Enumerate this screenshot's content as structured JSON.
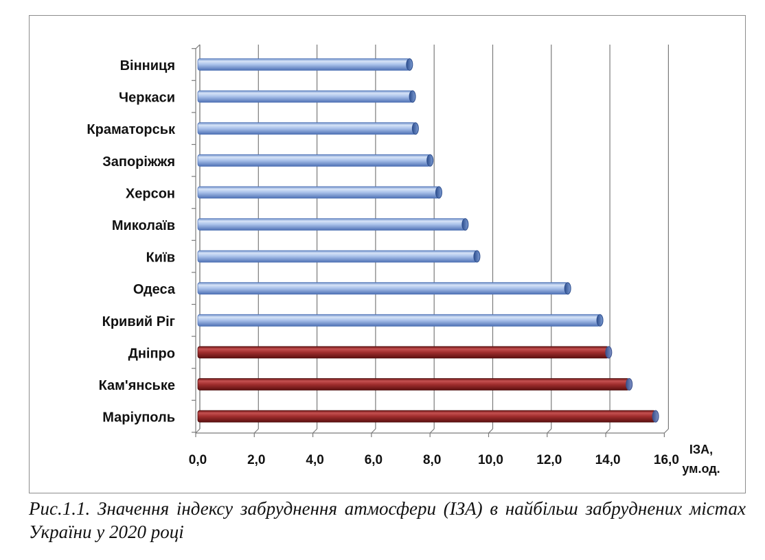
{
  "caption": "Рис.1.1. Значення індексу забруднення атмосфери (ІЗА) в найбільш забруднених містах України у 2020 році",
  "chart_data": {
    "type": "bar",
    "orientation": "horizontal",
    "categories": [
      "Вінниця",
      "Черкаси",
      "Краматорськ",
      "Запоріжжя",
      "Херсон",
      "Миколаїв",
      "Київ",
      "Одеса",
      "Кривий Ріг",
      "Дніпро",
      "Кам'янське",
      "Маріуполь"
    ],
    "values": [
      7.3,
      7.4,
      7.5,
      8.0,
      8.3,
      9.2,
      9.6,
      12.7,
      13.8,
      14.1,
      14.8,
      15.7
    ],
    "xlabel_lines": [
      "ІЗА,",
      "ум.од."
    ],
    "xlim": [
      0,
      16
    ],
    "xticks": [
      "0,0",
      "2,0",
      "4,0",
      "6,0",
      "8,0",
      "10,0",
      "12,0",
      "14,0",
      "16,0"
    ],
    "xtick_step": 2,
    "grid": true,
    "legend": "none",
    "colors": {
      "default_bar": "#8eaee0",
      "highlight_bar": "#9c2b2b",
      "highlighted_categories": [
        "Дніпро",
        "Кам'янське",
        "Маріуполь"
      ],
      "grid": "#7a7a7a"
    }
  }
}
